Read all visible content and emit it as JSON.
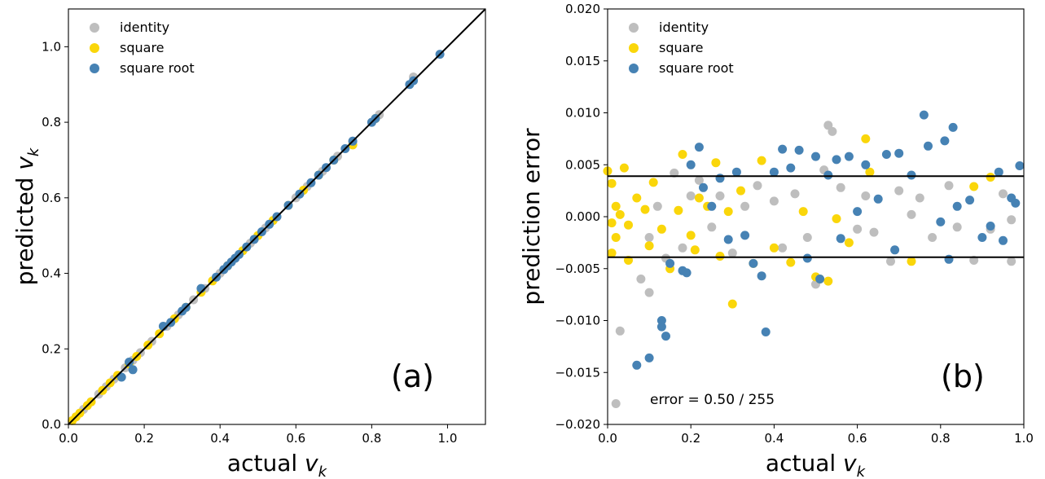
{
  "chart_data": [
    {
      "type": "scatter",
      "panel_label": "(a)",
      "xlabel": "actual",
      "ylabel": "predicted",
      "var_symbol": "v",
      "var_sub": "k",
      "xlim": [
        0,
        1.1
      ],
      "ylim": [
        0,
        1.1
      ],
      "xticks": [
        "0.0",
        "0.2",
        "0.4",
        "0.6",
        "0.8",
        "1.0"
      ],
      "yticks": [
        "0.0",
        "0.2",
        "0.4",
        "0.6",
        "0.8",
        "1.0"
      ],
      "reference_line": "y = x",
      "legend": "upper left",
      "series": [
        {
          "name": "identity",
          "color": "#bebebe",
          "points": [
            [
              0.02,
              0.02
            ],
            [
              0.04,
              0.04
            ],
            [
              0.06,
              0.06
            ],
            [
              0.08,
              0.08
            ],
            [
              0.1,
              0.1
            ],
            [
              0.12,
              0.12
            ],
            [
              0.15,
              0.15
            ],
            [
              0.17,
              0.17
            ],
            [
              0.19,
              0.19
            ],
            [
              0.22,
              0.22
            ],
            [
              0.26,
              0.26
            ],
            [
              0.29,
              0.29
            ],
            [
              0.33,
              0.33
            ],
            [
              0.36,
              0.36
            ],
            [
              0.4,
              0.4
            ],
            [
              0.44,
              0.44
            ],
            [
              0.48,
              0.48
            ],
            [
              0.52,
              0.52
            ],
            [
              0.55,
              0.55
            ],
            [
              0.6,
              0.6
            ],
            [
              0.63,
              0.63
            ],
            [
              0.67,
              0.67
            ],
            [
              0.71,
              0.71
            ],
            [
              0.75,
              0.75
            ],
            [
              0.8,
              0.8
            ],
            [
              0.82,
              0.82
            ],
            [
              0.91,
              0.92
            ]
          ]
        },
        {
          "name": "square",
          "color": "#fad60a",
          "points": [
            [
              0.01,
              0.01
            ],
            [
              0.02,
              0.02
            ],
            [
              0.03,
              0.03
            ],
            [
              0.05,
              0.05
            ],
            [
              0.06,
              0.06
            ],
            [
              0.09,
              0.09
            ],
            [
              0.11,
              0.11
            ],
            [
              0.13,
              0.13
            ],
            [
              0.16,
              0.16
            ],
            [
              0.18,
              0.18
            ],
            [
              0.21,
              0.21
            ],
            [
              0.24,
              0.24
            ],
            [
              0.28,
              0.28
            ],
            [
              0.31,
              0.31
            ],
            [
              0.35,
              0.35
            ],
            [
              0.38,
              0.38
            ],
            [
              0.42,
              0.42
            ],
            [
              0.46,
              0.46
            ],
            [
              0.5,
              0.5
            ],
            [
              0.54,
              0.54
            ],
            [
              0.58,
              0.58
            ],
            [
              0.62,
              0.62
            ],
            [
              0.66,
              0.66
            ],
            [
              0.7,
              0.7
            ],
            [
              0.75,
              0.74
            ],
            [
              0.81,
              0.81
            ]
          ]
        },
        {
          "name": "square root",
          "color": "#4682b4",
          "points": [
            [
              0.14,
              0.125
            ],
            [
              0.17,
              0.145
            ],
            [
              0.16,
              0.165
            ],
            [
              0.25,
              0.26
            ],
            [
              0.27,
              0.27
            ],
            [
              0.3,
              0.3
            ],
            [
              0.31,
              0.31
            ],
            [
              0.35,
              0.36
            ],
            [
              0.39,
              0.39
            ],
            [
              0.41,
              0.41
            ],
            [
              0.42,
              0.42
            ],
            [
              0.43,
              0.43
            ],
            [
              0.44,
              0.44
            ],
            [
              0.45,
              0.45
            ],
            [
              0.47,
              0.47
            ],
            [
              0.49,
              0.49
            ],
            [
              0.51,
              0.51
            ],
            [
              0.53,
              0.53
            ],
            [
              0.55,
              0.55
            ],
            [
              0.58,
              0.58
            ],
            [
              0.61,
              0.61
            ],
            [
              0.64,
              0.64
            ],
            [
              0.66,
              0.66
            ],
            [
              0.68,
              0.68
            ],
            [
              0.7,
              0.7
            ],
            [
              0.73,
              0.73
            ],
            [
              0.75,
              0.75
            ],
            [
              0.8,
              0.8
            ],
            [
              0.81,
              0.81
            ],
            [
              0.9,
              0.9
            ],
            [
              0.91,
              0.91
            ],
            [
              0.98,
              0.98
            ]
          ]
        }
      ]
    },
    {
      "type": "scatter",
      "panel_label": "(b)",
      "annotation": "error = 0.50 / 255",
      "xlabel": "actual",
      "ylabel": "prediction error",
      "var_symbol": "v",
      "var_sub": "k",
      "xlim": [
        0,
        1.0
      ],
      "ylim": [
        -0.02,
        0.02
      ],
      "xticks": [
        "0.0",
        "0.2",
        "0.4",
        "0.6",
        "0.8",
        "1.0"
      ],
      "yticks": [
        "−0.020",
        "−0.015",
        "−0.010",
        "−0.005",
        "0.000",
        "0.005",
        "0.010",
        "0.015",
        "0.020"
      ],
      "hlines": [
        0.0039,
        -0.0039
      ],
      "legend": "upper left",
      "series": [
        {
          "name": "identity",
          "color": "#bebebe",
          "points": [
            [
              0.02,
              -0.018
            ],
            [
              0.03,
              -0.011
            ],
            [
              0.08,
              -0.006
            ],
            [
              0.1,
              -0.0073
            ],
            [
              0.1,
              -0.002
            ],
            [
              0.12,
              0.001
            ],
            [
              0.14,
              -0.004
            ],
            [
              0.16,
              0.0042
            ],
            [
              0.18,
              -0.003
            ],
            [
              0.2,
              0.002
            ],
            [
              0.22,
              0.0035
            ],
            [
              0.25,
              -0.001
            ],
            [
              0.27,
              0.002
            ],
            [
              0.3,
              -0.0035
            ],
            [
              0.33,
              0.001
            ],
            [
              0.36,
              0.003
            ],
            [
              0.4,
              0.0015
            ],
            [
              0.42,
              -0.003
            ],
            [
              0.45,
              0.0022
            ],
            [
              0.48,
              -0.002
            ],
            [
              0.5,
              -0.0065
            ],
            [
              0.52,
              0.0045
            ],
            [
              0.53,
              0.0088
            ],
            [
              0.54,
              0.0082
            ],
            [
              0.56,
              0.0028
            ],
            [
              0.6,
              -0.0012
            ],
            [
              0.62,
              0.002
            ],
            [
              0.64,
              -0.0015
            ],
            [
              0.68,
              -0.0043
            ],
            [
              0.7,
              0.0025
            ],
            [
              0.73,
              0.0002
            ],
            [
              0.75,
              0.0018
            ],
            [
              0.78,
              -0.002
            ],
            [
              0.82,
              0.003
            ],
            [
              0.84,
              -0.001
            ],
            [
              0.88,
              -0.0042
            ],
            [
              0.92,
              -0.0012
            ],
            [
              0.95,
              0.0022
            ],
            [
              0.97,
              -0.0043
            ],
            [
              0.97,
              -0.0003
            ]
          ]
        },
        {
          "name": "square",
          "color": "#fad60a",
          "points": [
            [
              0.0,
              0.0044
            ],
            [
              0.01,
              0.0032
            ],
            [
              0.02,
              0.001
            ],
            [
              0.01,
              -0.0006
            ],
            [
              0.02,
              -0.002
            ],
            [
              0.01,
              -0.0035
            ],
            [
              0.03,
              0.0002
            ],
            [
              0.04,
              0.0047
            ],
            [
              0.05,
              -0.0008
            ],
            [
              0.05,
              -0.0042
            ],
            [
              0.07,
              0.0018
            ],
            [
              0.09,
              0.0007
            ],
            [
              0.1,
              -0.0028
            ],
            [
              0.11,
              0.0033
            ],
            [
              0.13,
              -0.0012
            ],
            [
              0.15,
              -0.005
            ],
            [
              0.17,
              0.0006
            ],
            [
              0.18,
              0.006
            ],
            [
              0.2,
              -0.0018
            ],
            [
              0.21,
              -0.0032
            ],
            [
              0.22,
              0.0018
            ],
            [
              0.24,
              0.001
            ],
            [
              0.26,
              0.0052
            ],
            [
              0.27,
              -0.0038
            ],
            [
              0.29,
              0.0005
            ],
            [
              0.3,
              -0.0084
            ],
            [
              0.32,
              0.0025
            ],
            [
              0.35,
              -0.0045
            ],
            [
              0.37,
              0.0054
            ],
            [
              0.4,
              -0.003
            ],
            [
              0.44,
              -0.0044
            ],
            [
              0.47,
              0.0005
            ],
            [
              0.5,
              -0.0058
            ],
            [
              0.51,
              -0.006
            ],
            [
              0.53,
              -0.0062
            ],
            [
              0.55,
              -0.0002
            ],
            [
              0.58,
              -0.0025
            ],
            [
              0.62,
              0.0075
            ],
            [
              0.63,
              0.0043
            ],
            [
              0.73,
              -0.0043
            ],
            [
              0.88,
              0.0029
            ],
            [
              0.92,
              0.0038
            ]
          ]
        },
        {
          "name": "square root",
          "color": "#4682b4",
          "points": [
            [
              0.07,
              -0.0143
            ],
            [
              0.1,
              -0.0136
            ],
            [
              0.13,
              -0.01
            ],
            [
              0.13,
              -0.0106
            ],
            [
              0.14,
              -0.0115
            ],
            [
              0.15,
              -0.0045
            ],
            [
              0.18,
              -0.0052
            ],
            [
              0.19,
              -0.0054
            ],
            [
              0.2,
              0.005
            ],
            [
              0.22,
              0.0067
            ],
            [
              0.23,
              0.0028
            ],
            [
              0.25,
              0.001
            ],
            [
              0.27,
              0.0037
            ],
            [
              0.29,
              -0.0022
            ],
            [
              0.31,
              0.0043
            ],
            [
              0.33,
              -0.0018
            ],
            [
              0.35,
              -0.0045
            ],
            [
              0.37,
              -0.0057
            ],
            [
              0.38,
              -0.0111
            ],
            [
              0.4,
              0.0043
            ],
            [
              0.42,
              0.0065
            ],
            [
              0.44,
              0.0047
            ],
            [
              0.46,
              0.0064
            ],
            [
              0.48,
              -0.004
            ],
            [
              0.5,
              0.0058
            ],
            [
              0.51,
              -0.006
            ],
            [
              0.53,
              0.004
            ],
            [
              0.55,
              0.0055
            ],
            [
              0.56,
              -0.0021
            ],
            [
              0.58,
              0.0058
            ],
            [
              0.6,
              0.0005
            ],
            [
              0.62,
              0.005
            ],
            [
              0.65,
              0.0017
            ],
            [
              0.67,
              0.006
            ],
            [
              0.69,
              -0.0032
            ],
            [
              0.7,
              0.0061
            ],
            [
              0.73,
              0.004
            ],
            [
              0.76,
              0.0098
            ],
            [
              0.77,
              0.0068
            ],
            [
              0.8,
              -0.0005
            ],
            [
              0.81,
              0.0073
            ],
            [
              0.82,
              -0.0041
            ],
            [
              0.83,
              0.0086
            ],
            [
              0.84,
              0.001
            ],
            [
              0.87,
              0.0016
            ],
            [
              0.9,
              -0.002
            ],
            [
              0.92,
              -0.0009
            ],
            [
              0.94,
              0.0043
            ],
            [
              0.95,
              -0.0023
            ],
            [
              0.97,
              0.0018
            ],
            [
              0.98,
              0.0013
            ],
            [
              0.99,
              0.0049
            ]
          ]
        }
      ]
    }
  ]
}
